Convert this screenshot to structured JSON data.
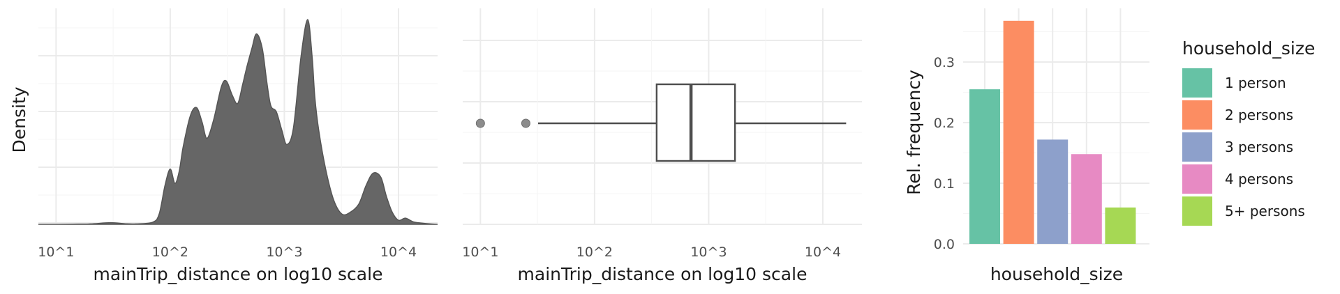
{
  "chart_data": [
    {
      "type": "area",
      "panel": "density",
      "xlabel": "mainTrip_distance on log10 scale",
      "ylabel": "Density",
      "x_scale": "log10",
      "xlim": [
        7,
        22000
      ],
      "x_ticks": [
        10,
        100,
        1000,
        10000
      ],
      "x_tick_labels": [
        "10^1",
        "10^2",
        "10^3",
        "10^4"
      ],
      "y_ticks_shown": false,
      "grid": true,
      "fill_color": "#666666",
      "series": [
        {
          "x": [
            7,
            10,
            14,
            20,
            30,
            40,
            50,
            70,
            80,
            90,
            100,
            110,
            120,
            130,
            150,
            170,
            190,
            210,
            240,
            280,
            310,
            350,
            390,
            430,
            470,
            520,
            570,
            640,
            700,
            760,
            850,
            950,
            1050,
            1200,
            1400,
            1600,
            1750,
            1850,
            2000,
            2300,
            2700,
            3200,
            3800,
            4500,
            5200,
            6000,
            7000,
            7800,
            8800,
            10000,
            11500,
            13500,
            16000,
            19000,
            22000
          ],
          "y": [
            0,
            0,
            0.001,
            0.002,
            0.008,
            0.003,
            0.002,
            0.01,
            0.05,
            0.19,
            0.27,
            0.2,
            0.26,
            0.38,
            0.53,
            0.57,
            0.5,
            0.42,
            0.51,
            0.67,
            0.7,
            0.63,
            0.59,
            0.68,
            0.77,
            0.86,
            0.93,
            0.86,
            0.7,
            0.58,
            0.55,
            0.46,
            0.39,
            0.47,
            0.82,
            1.0,
            0.82,
            0.62,
            0.46,
            0.27,
            0.12,
            0.05,
            0.06,
            0.1,
            0.19,
            0.25,
            0.23,
            0.14,
            0.06,
            0.02,
            0.03,
            0.012,
            0.006,
            0.002,
            0
          ]
        }
      ]
    },
    {
      "type": "boxplot",
      "panel": "boxplot",
      "xlabel": "mainTrip_distance on log10 scale",
      "x_scale": "log10",
      "xlim": [
        7,
        22000
      ],
      "x_ticks": [
        10,
        100,
        1000,
        10000
      ],
      "x_tick_labels": [
        "10^1",
        "10^2",
        "10^3",
        "10^4"
      ],
      "grid": true,
      "whisker_low": 32,
      "q1": 350,
      "median": 700,
      "q3": 1700,
      "whisker_high": 16000,
      "outliers": [
        10,
        25
      ]
    },
    {
      "type": "bar",
      "panel": "household",
      "xlabel": "household_size",
      "ylabel": "Rel. frequency",
      "ylim": [
        0,
        0.37
      ],
      "y_ticks": [
        0,
        0.1,
        0.2,
        0.3
      ],
      "y_tick_labels": [
        "0.0",
        "0.1",
        "0.2",
        "0.3"
      ],
      "grid": true,
      "legend_title": "household_size",
      "legend_position": "right",
      "categories": [
        "1 person",
        "2 persons",
        "3 persons",
        "4 persons",
        "5+ persons"
      ],
      "values": [
        0.255,
        0.368,
        0.172,
        0.148,
        0.06
      ],
      "colors": [
        "#66C2A5",
        "#FC8D62",
        "#8DA0CB",
        "#E78AC3",
        "#A6D854"
      ]
    }
  ]
}
